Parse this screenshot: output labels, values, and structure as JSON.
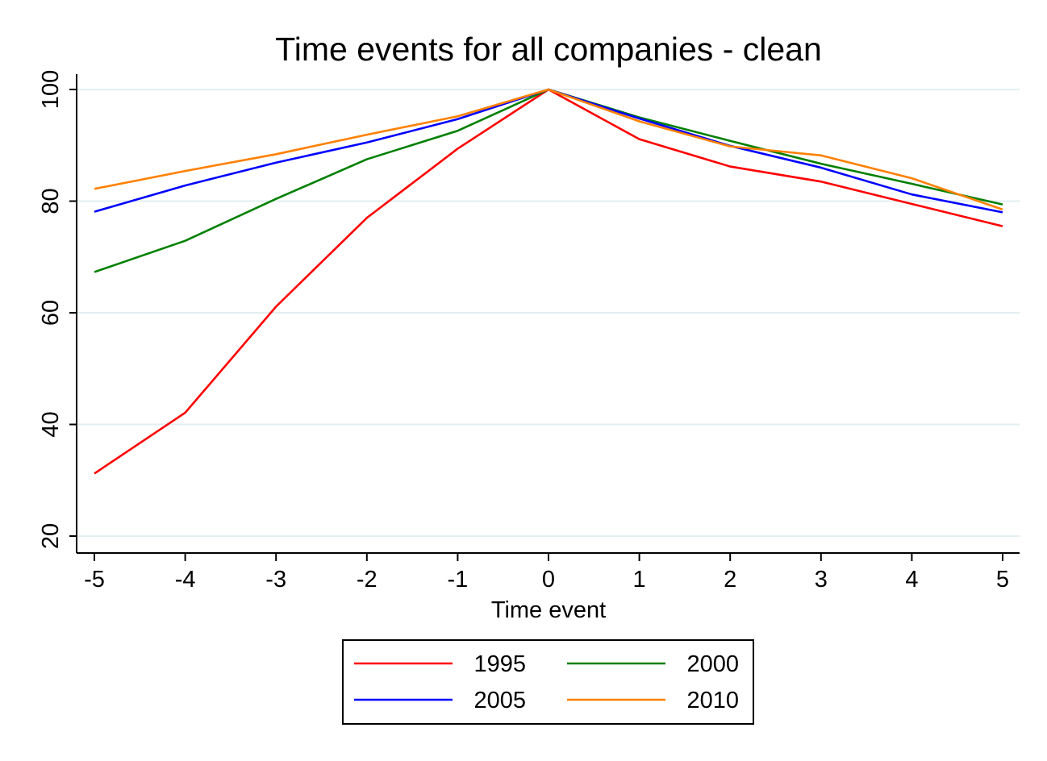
{
  "chart_data": {
    "type": "line",
    "title": "Time events for all companies - clean",
    "xlabel": "Time event",
    "ylabel": "",
    "x": [
      -5,
      -4,
      -3,
      -2,
      -1,
      0,
      1,
      2,
      3,
      4,
      5
    ],
    "xlim": [
      -5,
      5
    ],
    "ylim": [
      20,
      100
    ],
    "xticks": [
      -5,
      -4,
      -3,
      -2,
      -1,
      0,
      1,
      2,
      3,
      4,
      5
    ],
    "yticks": [
      20,
      40,
      60,
      80,
      100
    ],
    "grid": "horizontal",
    "legend_position": "bottom",
    "series": [
      {
        "name": "1995",
        "color": "#ff0000",
        "values": [
          31.2,
          42.1,
          61.1,
          77.0,
          89.4,
          100,
          91.1,
          86.2,
          83.5,
          79.5,
          75.5
        ]
      },
      {
        "name": "2000",
        "color": "#008000",
        "values": [
          67.3,
          72.9,
          80.4,
          87.5,
          92.6,
          100,
          95.0,
          90.8,
          86.7,
          83.1,
          79.4
        ]
      },
      {
        "name": "2005",
        "color": "#0000ff",
        "values": [
          78.1,
          82.8,
          86.9,
          90.5,
          94.7,
          100,
          94.8,
          89.9,
          86.0,
          81.2,
          78.0
        ]
      },
      {
        "name": "2010",
        "color": "#ff8000",
        "values": [
          82.2,
          85.4,
          88.4,
          91.9,
          95.2,
          100,
          94.3,
          89.8,
          88.2,
          84.1,
          78.5
        ]
      }
    ]
  }
}
